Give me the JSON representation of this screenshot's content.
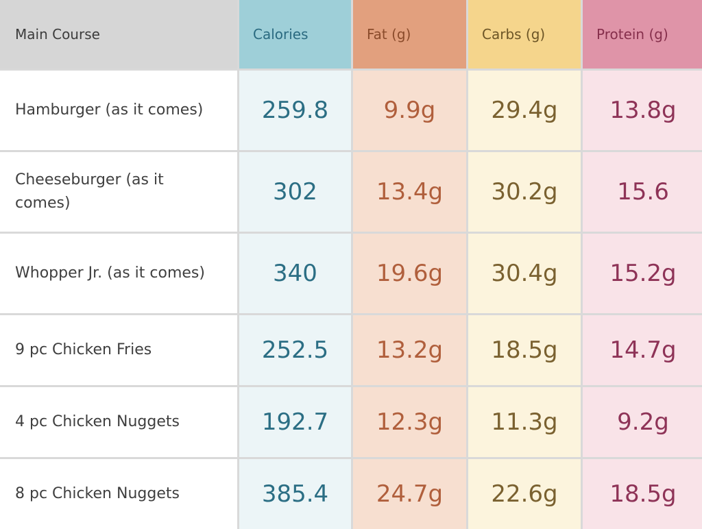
{
  "headers": {
    "course": "Main Course",
    "calories": "Calories",
    "fat": "Fat (g)",
    "carbs": "Carbs (g)",
    "protein": "Protein (g)"
  },
  "rows": [
    {
      "name": "Hamburger (as it comes)",
      "calories": "259.8",
      "fat": "9.9g",
      "carbs": "29.4g",
      "protein": "13.8g"
    },
    {
      "name": "Cheeseburger (as it comes)",
      "calories": "302",
      "fat": "13.4g",
      "carbs": "30.2g",
      "protein": "15.6"
    },
    {
      "name": "Whopper Jr. (as it comes)",
      "calories": "340",
      "fat": "19.6g",
      "carbs": "30.4g",
      "protein": "15.2g"
    },
    {
      "name": "9 pc Chicken Fries",
      "calories": "252.5",
      "fat": "13.2g",
      "carbs": "18.5g",
      "protein": "14.7g"
    },
    {
      "name": "4 pc Chicken Nuggets",
      "calories": "192.7",
      "fat": "12.3g",
      "carbs": "11.3g",
      "protein": "9.2g"
    },
    {
      "name": "8 pc Chicken Nuggets",
      "calories": "385.4",
      "fat": "24.7g",
      "carbs": "22.6g",
      "protein": "18.5g"
    }
  ]
}
